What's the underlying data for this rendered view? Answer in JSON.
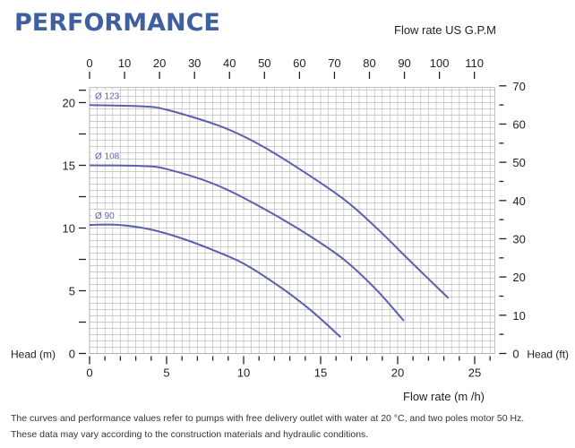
{
  "title": "PERFORMANCE",
  "notes": [
    "The curves and performance values refer to pumps with free delivery outlet with water at 20 °C, and two poles motor 50 Hz.",
    "These data may vary according to the construction materials and hydraulic conditions."
  ],
  "chart_data": {
    "type": "line",
    "xlabel": "Flow rate  (m /h)",
    "ylabel": "Head (m)",
    "x2label": "Flow rate US  G.P.M",
    "y2label": "Head (ft)",
    "xlim": [
      0,
      26.3
    ],
    "ylim": [
      0,
      21.2
    ],
    "xticks": [
      0,
      5,
      10,
      15,
      20,
      25
    ],
    "yticks": [
      0,
      5,
      10,
      15,
      20
    ],
    "x2ticks": [
      0,
      10,
      20,
      30,
      40,
      50,
      60,
      70,
      80,
      90,
      100,
      110
    ],
    "y2ticks": [
      0,
      10,
      20,
      30,
      40,
      50,
      60,
      70
    ],
    "grid": true,
    "line_color": "#5a5fb0",
    "series": [
      {
        "name": "Ø 123",
        "x": [
          0,
          3.5,
          5.1,
          8.3,
          10.5,
          13,
          16.5,
          18.8,
          20.7,
          23.3
        ],
        "y": [
          19.8,
          19.7,
          19.4,
          18.2,
          17.0,
          15.2,
          12.3,
          9.8,
          7.5,
          4.4
        ]
      },
      {
        "name": "Ø 108",
        "x": [
          0,
          3.3,
          5.0,
          8.1,
          11,
          14,
          16.5,
          18.6,
          20.4
        ],
        "y": [
          15.0,
          14.95,
          14.7,
          13.5,
          11.75,
          9.6,
          7.5,
          5.1,
          2.6
        ]
      },
      {
        "name": "Ø 90",
        "x": [
          0,
          1.9,
          3.9,
          5.8,
          7.9,
          10.1,
          12.6,
          14.5,
          16.3
        ],
        "y": [
          10.25,
          10.25,
          9.9,
          9.25,
          8.3,
          7.1,
          5.1,
          3.3,
          1.3
        ]
      }
    ]
  }
}
